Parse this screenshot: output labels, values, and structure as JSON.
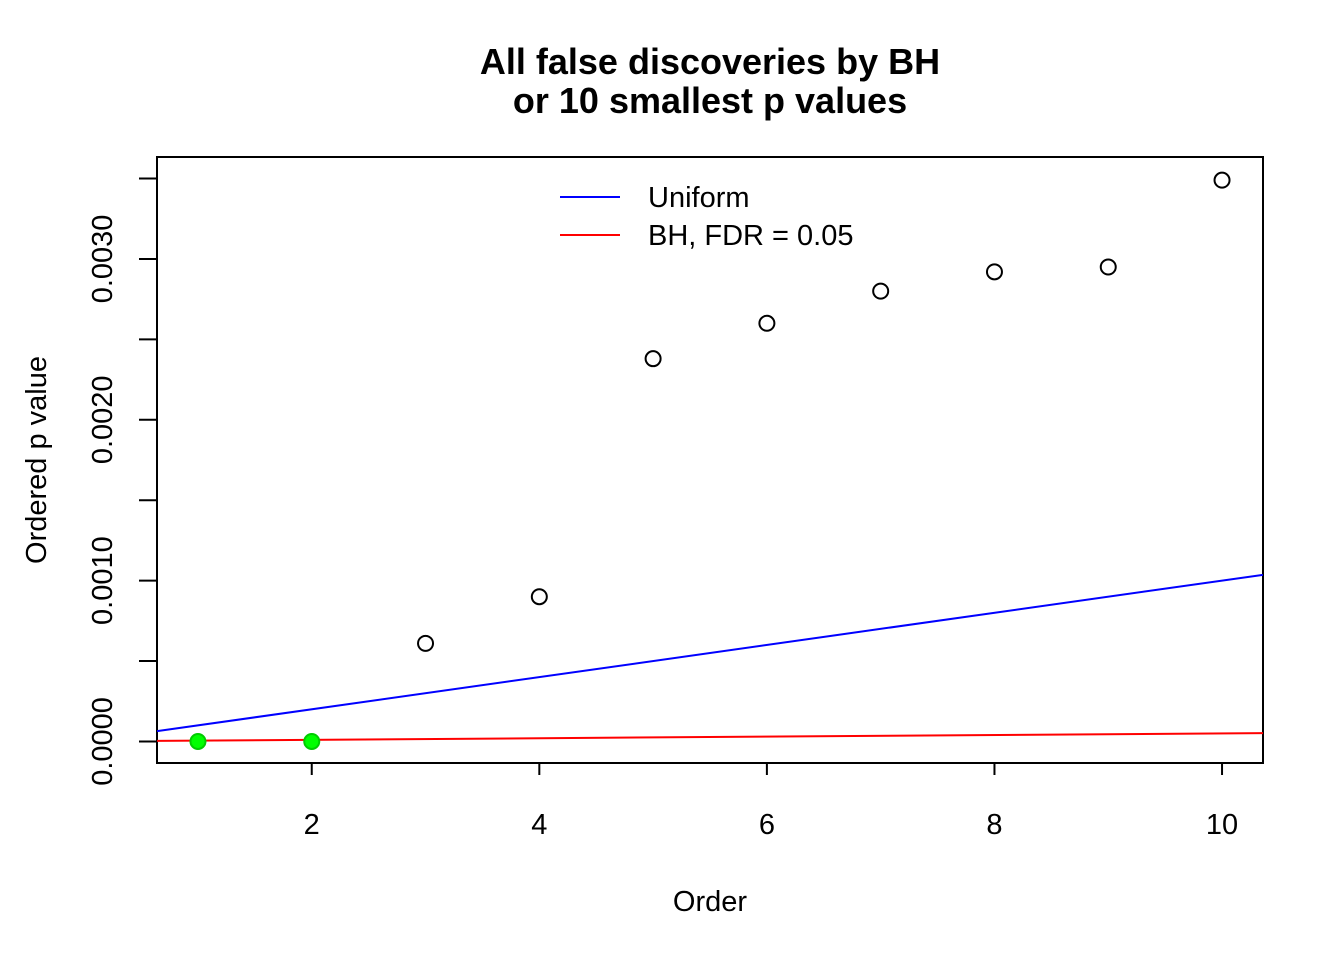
{
  "chart_data": {
    "type": "scatter",
    "title": [
      "All false discoveries by BH",
      "or 10 smallest p values"
    ],
    "xlabel": "Order",
    "ylabel": "Ordered p value",
    "xlim": [
      0.64,
      10.36
    ],
    "ylim": [
      -0.000134,
      0.003634
    ],
    "x_ticks": [
      2,
      4,
      6,
      8,
      10
    ],
    "x_tick_labels": [
      "2",
      "4",
      "6",
      "8",
      "10"
    ],
    "y_ticks": [
      0,
      0.0005,
      0.001,
      0.0015,
      0.002,
      0.0025,
      0.003,
      0.0035
    ],
    "y_tick_labels": [
      "0.0000",
      "",
      "0.0010",
      "",
      "0.0020",
      "",
      "0.0030",
      ""
    ],
    "grid": false,
    "legend_position": "top-center",
    "points": {
      "x": [
        1,
        2,
        3,
        4,
        5,
        6,
        7,
        8,
        9,
        10
      ],
      "y": [
        0.0,
        0.0,
        0.00061,
        0.0009,
        0.00238,
        0.0026,
        0.0028,
        0.00292,
        0.00295,
        0.00349
      ],
      "highlighted": [
        true,
        true,
        false,
        false,
        false,
        false,
        false,
        false,
        false,
        false
      ]
    },
    "lines": [
      {
        "name": "Uniform",
        "slope": 0.0001,
        "intercept": 0,
        "color": "#0000ff"
      },
      {
        "name": "BH, FDR = 0.05",
        "slope": 5e-06,
        "intercept": 0,
        "color": "#ff0000"
      }
    ],
    "colors": {
      "highlight_fill": "#00ff00",
      "highlight_stroke": "#00cc00",
      "point_stroke": "#000000"
    }
  }
}
